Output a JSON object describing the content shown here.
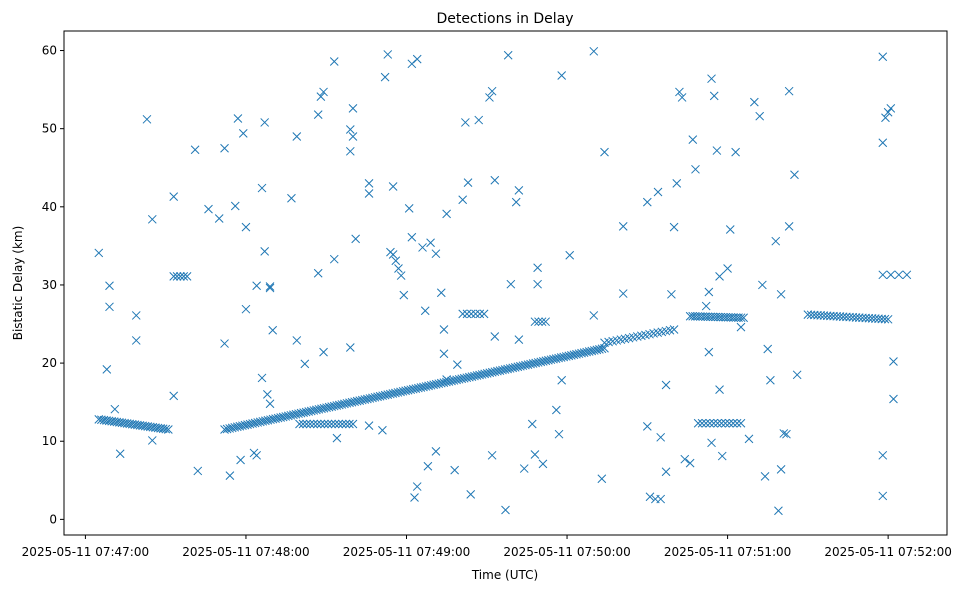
{
  "chart_data": {
    "type": "scatter",
    "title": "Detections in Delay",
    "xlabel": "Time (UTC)",
    "ylabel": "Bistatic Delay (km)",
    "marker": "x",
    "color": "#1f77b4",
    "x_unit": "seconds after 2025-05-11 07:47:00 UTC",
    "xlim": [
      -8,
      322
    ],
    "ylim": [
      -2,
      62.5
    ],
    "x_ticks": [
      {
        "value": 0,
        "label": "2025-05-11 07:47:00"
      },
      {
        "value": 60,
        "label": "2025-05-11 07:48:00"
      },
      {
        "value": 120,
        "label": "2025-05-11 07:49:00"
      },
      {
        "value": 180,
        "label": "2025-05-11 07:50:00"
      },
      {
        "value": 240,
        "label": "2025-05-11 07:51:00"
      },
      {
        "value": 300,
        "label": "2025-05-11 07:52:00"
      }
    ],
    "y_ticks": [
      {
        "value": 0,
        "label": "0"
      },
      {
        "value": 10,
        "label": "10"
      },
      {
        "value": 20,
        "label": "20"
      },
      {
        "value": 30,
        "label": "30"
      },
      {
        "value": 40,
        "label": "40"
      },
      {
        "value": 50,
        "label": "50"
      },
      {
        "value": 60,
        "label": "60"
      }
    ],
    "track_segments": [
      {
        "name": "target-track-early",
        "x_start": 5,
        "x_end": 31,
        "y_start": 12.8,
        "y_end": 11.5,
        "count": 28
      },
      {
        "name": "target-track-main",
        "x_start": 52,
        "x_end": 194,
        "y_start": 11.5,
        "y_end": 21.9,
        "count": 150
      },
      {
        "name": "target-track-mid",
        "x_start": 194,
        "x_end": 220,
        "y_start": 22.6,
        "y_end": 24.3,
        "count": 18
      },
      {
        "name": "target-track-late-a",
        "x_start": 226,
        "x_end": 246,
        "y_start": 26.0,
        "y_end": 25.8,
        "count": 22
      },
      {
        "name": "target-track-late-b",
        "x_start": 270,
        "x_end": 300,
        "y_start": 26.2,
        "y_end": 25.6,
        "count": 26
      }
    ],
    "clusters": [
      {
        "name": "cluster-12km-a",
        "x_start": 80,
        "x_end": 100,
        "y": 12.2,
        "count": 16
      },
      {
        "name": "cluster-12km-b",
        "x_start": 229,
        "x_end": 245,
        "y": 12.3,
        "count": 12
      },
      {
        "name": "cluster-31km",
        "x_start": 33,
        "x_end": 38,
        "y": 31.1,
        "count": 5
      },
      {
        "name": "cluster-26km",
        "x_start": 141,
        "x_end": 149,
        "y": 26.3,
        "count": 6
      },
      {
        "name": "cluster-25km",
        "x_start": 168,
        "x_end": 172,
        "y": 25.3,
        "count": 4
      },
      {
        "name": "cluster-31km-late",
        "x_start": 298,
        "x_end": 307,
        "y": 31.3,
        "count": 4
      }
    ],
    "points": [
      [
        5,
        34.1
      ],
      [
        8,
        19.2
      ],
      [
        9,
        29.9
      ],
      [
        9,
        27.2
      ],
      [
        11,
        14.1
      ],
      [
        13,
        8.4
      ],
      [
        19,
        26.1
      ],
      [
        19,
        22.9
      ],
      [
        23,
        51.2
      ],
      [
        25,
        10.1
      ],
      [
        25,
        38.4
      ],
      [
        33,
        41.3
      ],
      [
        33,
        15.8
      ],
      [
        41,
        47.3
      ],
      [
        42,
        6.2
      ],
      [
        46,
        39.7
      ],
      [
        50,
        38.5
      ],
      [
        52,
        47.5
      ],
      [
        52,
        22.5
      ],
      [
        54,
        5.6
      ],
      [
        56,
        40.1
      ],
      [
        57,
        51.3
      ],
      [
        58,
        7.6
      ],
      [
        59,
        49.4
      ],
      [
        60,
        37.4
      ],
      [
        60,
        26.9
      ],
      [
        63,
        8.5
      ],
      [
        64,
        29.9
      ],
      [
        64,
        8.2
      ],
      [
        66,
        18.1
      ],
      [
        66,
        42.4
      ],
      [
        67,
        34.3
      ],
      [
        67,
        50.8
      ],
      [
        68,
        16.0
      ],
      [
        69,
        29.6
      ],
      [
        69,
        29.8
      ],
      [
        69,
        14.8
      ],
      [
        70,
        24.2
      ],
      [
        77,
        41.1
      ],
      [
        79,
        22.9
      ],
      [
        79,
        49.0
      ],
      [
        82,
        19.9
      ],
      [
        87,
        31.5
      ],
      [
        87,
        51.8
      ],
      [
        88,
        54.1
      ],
      [
        89,
        54.7
      ],
      [
        89,
        21.4
      ],
      [
        93,
        58.6
      ],
      [
        93,
        33.3
      ],
      [
        94,
        10.4
      ],
      [
        99,
        49.9
      ],
      [
        99,
        47.1
      ],
      [
        99,
        22.0
      ],
      [
        100,
        52.6
      ],
      [
        100,
        49.0
      ],
      [
        101,
        35.9
      ],
      [
        106,
        43.0
      ],
      [
        106,
        41.7
      ],
      [
        106,
        12.0
      ],
      [
        111,
        11.4
      ],
      [
        112,
        56.6
      ],
      [
        113,
        59.5
      ],
      [
        114,
        34.2
      ],
      [
        115,
        42.6
      ],
      [
        115,
        33.9
      ],
      [
        116,
        33.1
      ],
      [
        117,
        32.1
      ],
      [
        118,
        31.2
      ],
      [
        119,
        28.7
      ],
      [
        121,
        39.8
      ],
      [
        122,
        58.3
      ],
      [
        122,
        36.1
      ],
      [
        123,
        2.8
      ],
      [
        124,
        58.9
      ],
      [
        124,
        4.2
      ],
      [
        126,
        34.8
      ],
      [
        127,
        26.7
      ],
      [
        128,
        6.8
      ],
      [
        129,
        35.4
      ],
      [
        131,
        34.0
      ],
      [
        131,
        8.7
      ],
      [
        133,
        29.0
      ],
      [
        134,
        21.2
      ],
      [
        134,
        24.3
      ],
      [
        135,
        39.1
      ],
      [
        135,
        17.9
      ],
      [
        138,
        6.3
      ],
      [
        139,
        19.8
      ],
      [
        141,
        40.9
      ],
      [
        142,
        50.8
      ],
      [
        143,
        43.1
      ],
      [
        144,
        3.2
      ],
      [
        147,
        51.1
      ],
      [
        151,
        54.0
      ],
      [
        152,
        54.8
      ],
      [
        152,
        8.2
      ],
      [
        153,
        43.4
      ],
      [
        153,
        23.4
      ],
      [
        157,
        1.2
      ],
      [
        158,
        59.4
      ],
      [
        159,
        30.1
      ],
      [
        161,
        40.6
      ],
      [
        162,
        42.1
      ],
      [
        162,
        23.0
      ],
      [
        164,
        6.5
      ],
      [
        167,
        12.2
      ],
      [
        168,
        8.3
      ],
      [
        169,
        32.2
      ],
      [
        169,
        30.1
      ],
      [
        171,
        7.1
      ],
      [
        176,
        14.0
      ],
      [
        177,
        10.9
      ],
      [
        178,
        56.8
      ],
      [
        178,
        17.8
      ],
      [
        181,
        33.8
      ],
      [
        190,
        59.9
      ],
      [
        190,
        26.1
      ],
      [
        193,
        5.2
      ],
      [
        194,
        47.0
      ],
      [
        201,
        37.5
      ],
      [
        201,
        28.9
      ],
      [
        210,
        40.6
      ],
      [
        210,
        11.9
      ],
      [
        211,
        2.9
      ],
      [
        213,
        2.6
      ],
      [
        214,
        41.9
      ],
      [
        215,
        10.5
      ],
      [
        215,
        2.6
      ],
      [
        217,
        6.1
      ],
      [
        217,
        17.2
      ],
      [
        219,
        28.8
      ],
      [
        220,
        37.4
      ],
      [
        221,
        43.0
      ],
      [
        222,
        54.7
      ],
      [
        223,
        54.0
      ],
      [
        224,
        7.7
      ],
      [
        226,
        7.2
      ],
      [
        227,
        48.6
      ],
      [
        228,
        44.8
      ],
      [
        232,
        27.3
      ],
      [
        233,
        29.1
      ],
      [
        233,
        21.4
      ],
      [
        234,
        56.4
      ],
      [
        234,
        9.8
      ],
      [
        235,
        54.2
      ],
      [
        236,
        47.2
      ],
      [
        237,
        16.6
      ],
      [
        237,
        31.1
      ],
      [
        238,
        8.1
      ],
      [
        240,
        32.1
      ],
      [
        241,
        37.1
      ],
      [
        243,
        47.0
      ],
      [
        245,
        24.6
      ],
      [
        248,
        10.3
      ],
      [
        250,
        53.4
      ],
      [
        252,
        51.6
      ],
      [
        253,
        30.0
      ],
      [
        254,
        5.5
      ],
      [
        255,
        21.8
      ],
      [
        256,
        17.8
      ],
      [
        258,
        35.6
      ],
      [
        259,
        1.1
      ],
      [
        260,
        28.8
      ],
      [
        260,
        6.4
      ],
      [
        261,
        11.0
      ],
      [
        262,
        10.9
      ],
      [
        263,
        37.5
      ],
      [
        263,
        54.8
      ],
      [
        265,
        44.1
      ],
      [
        266,
        18.5
      ],
      [
        298,
        59.2
      ],
      [
        298,
        8.2
      ],
      [
        298,
        3.0
      ],
      [
        298,
        48.2
      ],
      [
        299,
        51.4
      ],
      [
        300,
        52.1
      ],
      [
        301,
        52.6
      ],
      [
        302,
        20.2
      ],
      [
        302,
        15.4
      ]
    ]
  }
}
